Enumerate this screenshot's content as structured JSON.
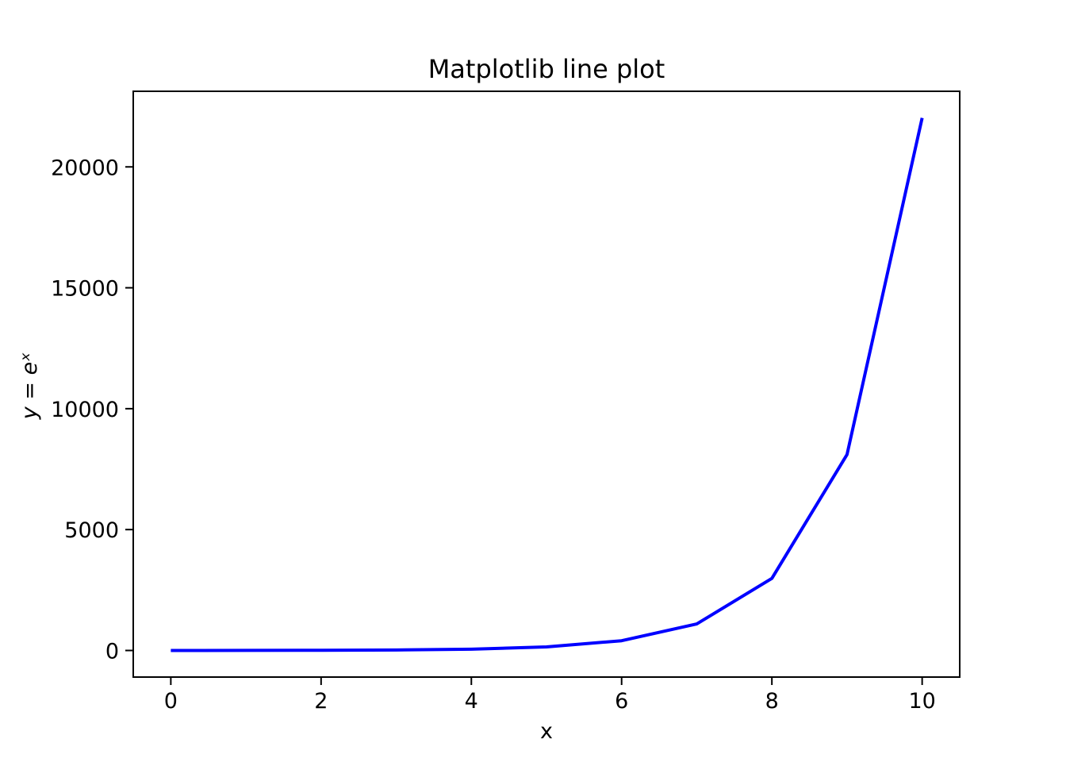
{
  "chart_data": {
    "type": "line",
    "title": "Matplotlib line plot",
    "xlabel": "x",
    "ylabel": "y = eˣ",
    "x": [
      0,
      1,
      2,
      3,
      4,
      5,
      6,
      7,
      8,
      9,
      10
    ],
    "series": [
      {
        "color": "#0000ff",
        "values": [
          1,
          2.718,
          7.389,
          20.09,
          54.6,
          148.4,
          403.4,
          1096.6,
          2981,
          8103,
          22026
        ]
      }
    ],
    "xlim": [
      -0.5,
      10.5
    ],
    "xticks": [
      0,
      2,
      4,
      6,
      8,
      10
    ],
    "ylim": [
      -1100,
      23127
    ],
    "yticks": [
      0,
      5000,
      10000,
      15000,
      20000
    ],
    "grid": false
  }
}
